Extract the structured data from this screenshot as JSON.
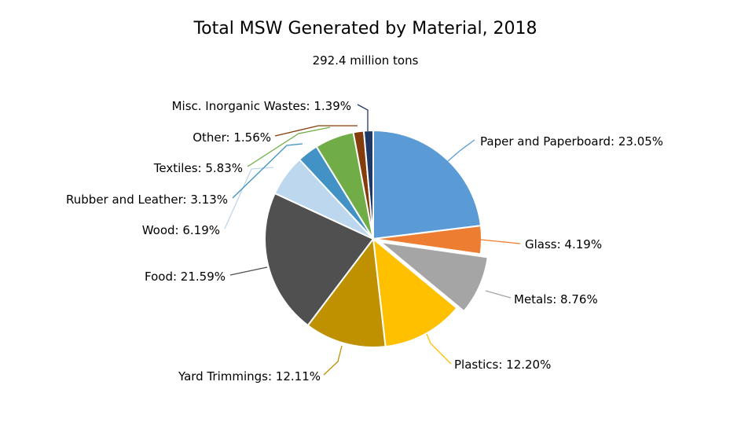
{
  "chart_data": {
    "type": "pie",
    "title": "Total MSW Generated by Material, 2018",
    "subtitle": "292.4 million tons",
    "slices": [
      {
        "name": "Paper and Paperboard",
        "value": 23.05,
        "label": "Paper and Paperboard: 23.05%",
        "color": "#5B9BD5"
      },
      {
        "name": "Glass",
        "value": 4.19,
        "label": "Glass: 4.19%",
        "color": "#ED7D31"
      },
      {
        "name": "Metals",
        "value": 8.76,
        "label": "Metals: 8.76%",
        "color": "#A5A5A5",
        "exploded": true
      },
      {
        "name": "Plastics",
        "value": 12.2,
        "label": "Plastics: 12.20%",
        "color": "#FFC000"
      },
      {
        "name": "Yard Trimmings",
        "value": 12.11,
        "label": "Yard Trimmings: 12.11%",
        "color": "#BF9000"
      },
      {
        "name": "Food",
        "value": 21.59,
        "label": "Food: 21.59%",
        "color": "#505050"
      },
      {
        "name": "Wood",
        "value": 6.19,
        "label": "Wood: 6.19%",
        "color": "#BDD7EE"
      },
      {
        "name": "Rubber and Leather",
        "value": 3.13,
        "label": "Rubber and Leather: 3.13%",
        "color": "#4292C6"
      },
      {
        "name": "Textiles",
        "value": 5.83,
        "label": "Textiles: 5.83%",
        "color": "#70AD47"
      },
      {
        "name": "Other",
        "value": 1.56,
        "label": "Other: 1.56%",
        "color": "#843C0C"
      },
      {
        "name": "Misc. Inorganic Wastes",
        "value": 1.39,
        "label": "Misc. Inorganic Wastes: 1.39%",
        "color": "#203864"
      }
    ]
  }
}
